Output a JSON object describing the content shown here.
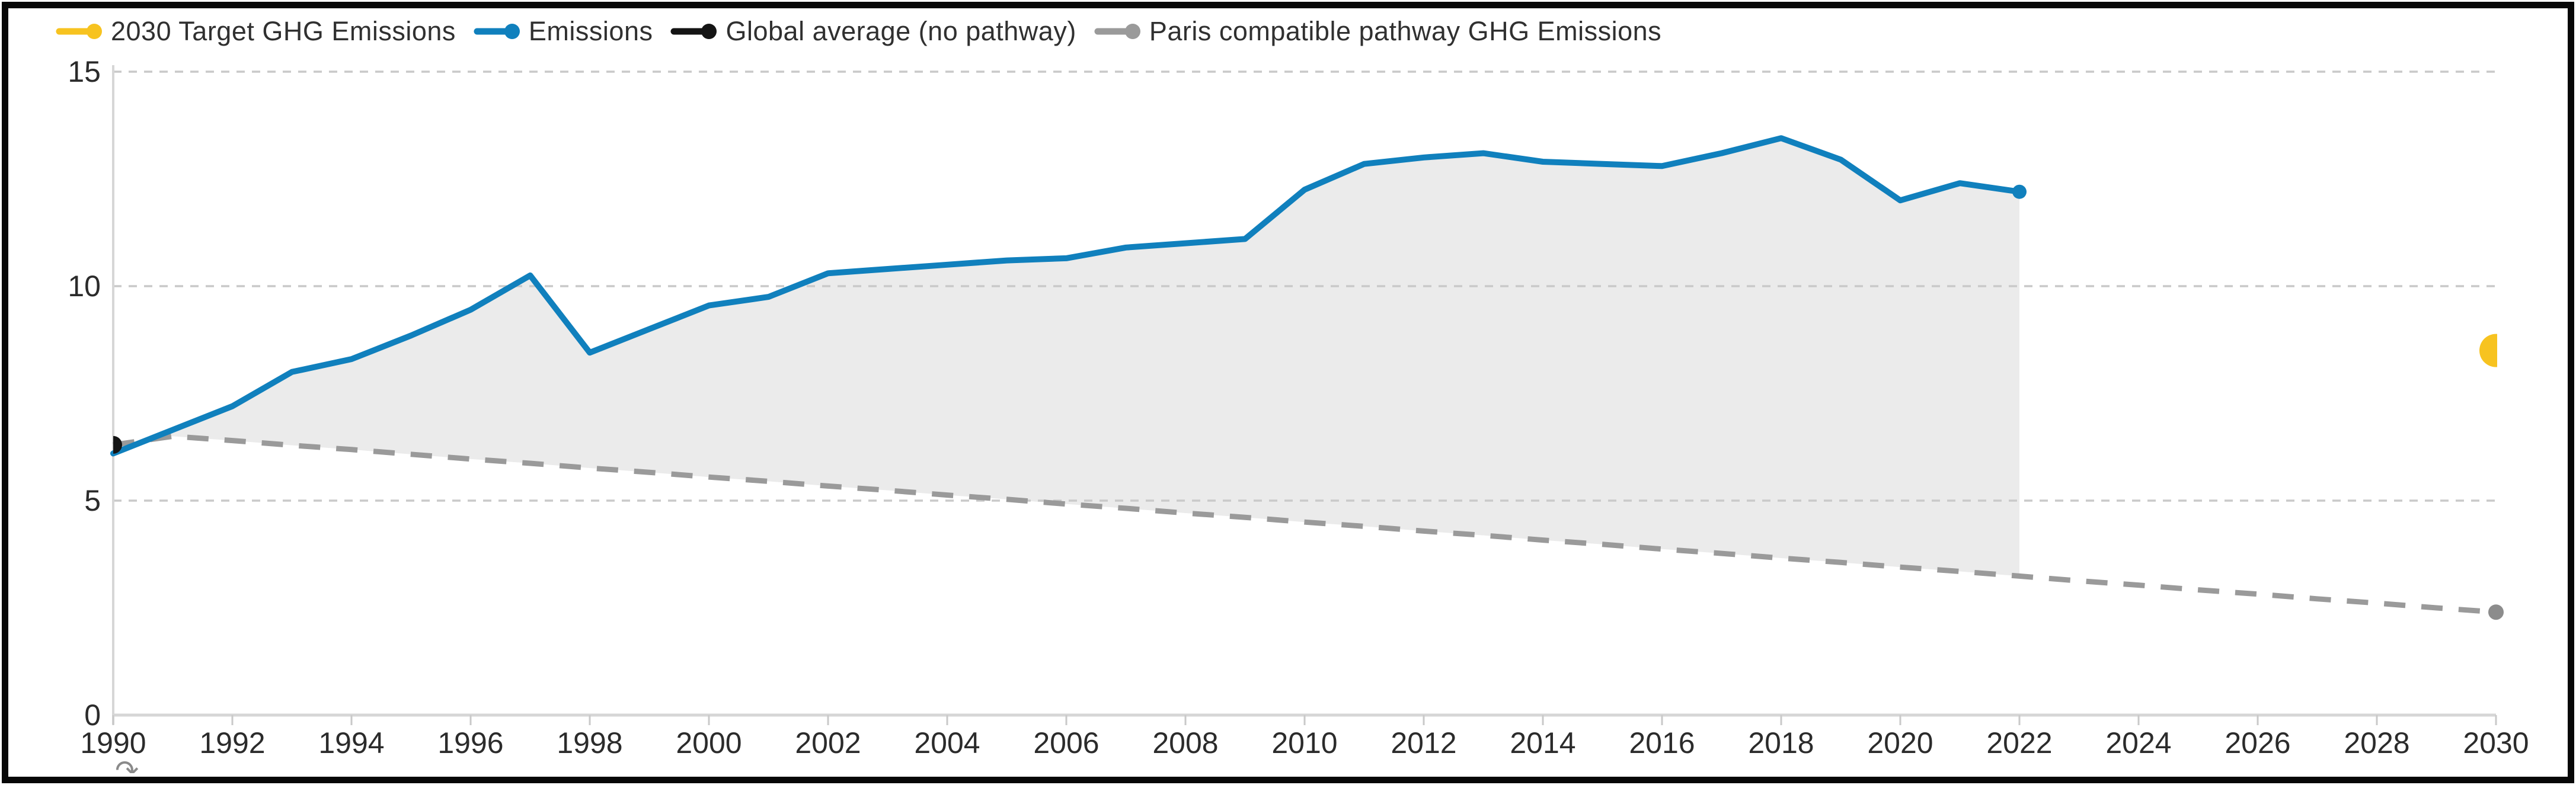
{
  "legend": {
    "items": [
      {
        "label": "2030 Target GHG Emissions",
        "color": "#F7C320"
      },
      {
        "label": "Emissions",
        "color": "#1080BD"
      },
      {
        "label": "Global average (no pathway)",
        "color": "#141414"
      },
      {
        "label": "Paris compatible pathway GHG Emissions",
        "color": "#9A9A9A"
      }
    ]
  },
  "colors": {
    "emissions": "#1080BD",
    "target": "#F7C320",
    "global_average": "#141414",
    "pathway": "#9A9A9A",
    "pathway_dot": "#8C8C8C",
    "area": "#EBEBEB",
    "grid": "#C9C9C9",
    "axis": "#D6D6D6",
    "tick": "#C9C9C9",
    "label": "#2B2B2B",
    "frame": "#070707"
  },
  "icons": {
    "redo_arrow": "↷"
  },
  "chart_data": {
    "type": "line",
    "title": "",
    "xlabel": "",
    "ylabel": "",
    "x": {
      "min": 1990,
      "max": 2030,
      "ticks": [
        1990,
        1992,
        1994,
        1996,
        1998,
        2000,
        2002,
        2004,
        2006,
        2008,
        2010,
        2012,
        2014,
        2016,
        2018,
        2020,
        2022,
        2024,
        2026,
        2028,
        2030
      ]
    },
    "y": {
      "min": 0,
      "max": 15,
      "ticks": [
        0,
        5,
        10,
        15
      ],
      "gridline_style": "dashed"
    },
    "legend_position": "top-left",
    "series": [
      {
        "name": "Emissions",
        "type": "line",
        "color": "#1080BD",
        "x": [
          1990,
          1991,
          1992,
          1993,
          1994,
          1995,
          1996,
          1997,
          1998,
          1999,
          2000,
          2001,
          2002,
          2003,
          2004,
          2005,
          2006,
          2007,
          2008,
          2009,
          2010,
          2011,
          2012,
          2013,
          2014,
          2015,
          2016,
          2017,
          2018,
          2019,
          2020,
          2021,
          2022
        ],
        "values": [
          6.1,
          6.65,
          7.2,
          8.0,
          8.3,
          8.85,
          9.45,
          10.25,
          8.45,
          9.0,
          9.55,
          9.75,
          10.3,
          10.4,
          10.5,
          10.6,
          10.65,
          10.9,
          11.0,
          11.1,
          12.25,
          12.85,
          13.0,
          13.1,
          12.9,
          12.85,
          12.8,
          13.1,
          13.45,
          12.95,
          12.0,
          12.4,
          12.2
        ]
      },
      {
        "name": "Paris compatible pathway GHG Emissions",
        "type": "dashed-line",
        "color": "#9A9A9A",
        "end_marker": "dot",
        "x": [
          1990,
          1991,
          1992,
          1993,
          1994,
          1995,
          1996,
          1997,
          1998,
          1999,
          2000,
          2001,
          2002,
          2003,
          2004,
          2005,
          2006,
          2007,
          2008,
          2009,
          2010,
          2011,
          2012,
          2013,
          2014,
          2015,
          2016,
          2017,
          2018,
          2019,
          2020,
          2021,
          2022,
          2023,
          2024,
          2025,
          2026,
          2027,
          2028,
          2029,
          2030
        ],
        "values": [
          6.3,
          6.5,
          6.4,
          6.29,
          6.19,
          6.08,
          5.97,
          5.87,
          5.76,
          5.66,
          5.55,
          5.45,
          5.34,
          5.24,
          5.13,
          5.03,
          4.92,
          4.82,
          4.71,
          4.61,
          4.5,
          4.4,
          4.29,
          4.19,
          4.08,
          3.98,
          3.87,
          3.77,
          3.66,
          3.56,
          3.45,
          3.35,
          3.24,
          3.13,
          3.03,
          2.92,
          2.82,
          2.71,
          2.61,
          2.5,
          2.4
        ]
      },
      {
        "name": "Global average (no pathway)",
        "type": "point",
        "color": "#141414",
        "x": [
          1990
        ],
        "values": [
          6.3
        ]
      },
      {
        "name": "2030 Target GHG Emissions",
        "type": "point",
        "color": "#F7C320",
        "x": [
          2030
        ],
        "values": [
          8.5
        ]
      }
    ],
    "area_between": {
      "upper": "Emissions",
      "lower": "Paris compatible pathway GHG Emissions",
      "from": 1990,
      "to": 2022,
      "color": "#EBEBEB"
    }
  }
}
